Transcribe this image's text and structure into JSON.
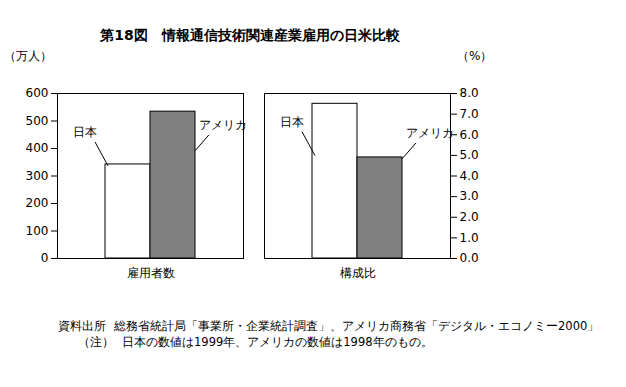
{
  "title": "第18図　情報通信技術関連産業雇用の日米比較",
  "notes": [
    {
      "label": "資料出所",
      "text": "総務省統計局「事業所・企業統計調査」、アメリカ商務省「デジタル・エコノミー2000」"
    },
    {
      "label": "（注）",
      "text": "日本の数値は1999年、アメリカの数値は1998年のもの。"
    }
  ],
  "chart_data": [
    {
      "type": "bar",
      "x_label": "雇用者数",
      "y_label": "（万人）",
      "categories": [
        "日本",
        "アメリカ"
      ],
      "values": [
        342,
        534
      ],
      "colors": [
        "#ffffff",
        "#808080"
      ],
      "ylim": [
        0,
        600
      ],
      "yticks": [
        0,
        100,
        200,
        300,
        400,
        500,
        600
      ],
      "tick_labels": "y",
      "grid": false
    },
    {
      "type": "bar",
      "x_label": "構成比",
      "y_label": "（%）",
      "categories": [
        "日本",
        "アメリカ"
      ],
      "values": [
        7.5,
        4.9
      ],
      "colors": [
        "#ffffff",
        "#808080"
      ],
      "ylim": [
        0,
        8
      ],
      "yticks": [
        {
          "value": 0,
          "label": "0.0"
        },
        {
          "value": 1,
          "label": "1.0"
        },
        {
          "value": 2,
          "label": "2.0"
        },
        {
          "value": 3,
          "label": "3.0"
        },
        {
          "value": 4,
          "label": "4.0"
        },
        {
          "value": 5,
          "label": "5.0"
        },
        {
          "value": 6,
          "label": "6.0"
        },
        {
          "value": 7,
          "label": "7.0"
        },
        {
          "value": 8,
          "label": "8.0"
        }
      ],
      "tick_labels": "y",
      "grid": false
    }
  ]
}
